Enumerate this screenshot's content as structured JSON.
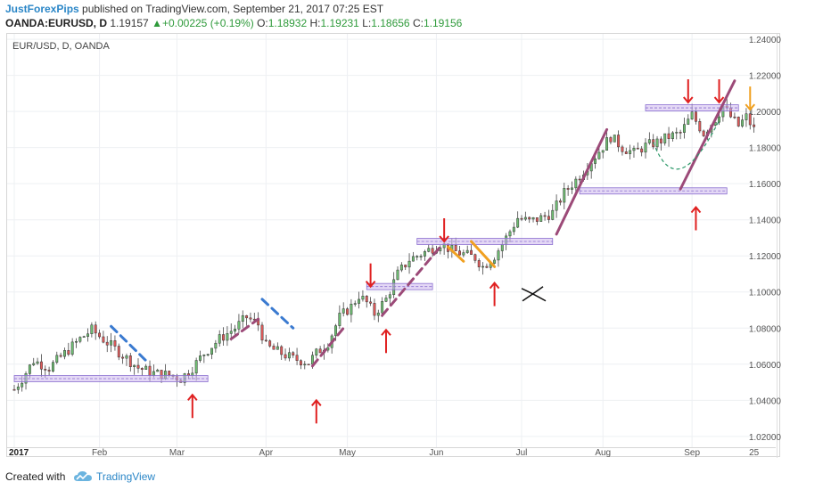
{
  "header": {
    "author": "JustForexPips",
    "published": " published on TradingView.com, September 21, 2017 07:25 EST",
    "symbol": "OANDA:EURUSD, D",
    "last": "1.19157",
    "change": "+0.00225 (+0.19%)",
    "o_label": "O:",
    "o": "1.18932",
    "h_label": "H:",
    "h": "1.19231",
    "l_label": "L:",
    "l": "1.18656",
    "c_label": "C:",
    "c": "1.19156"
  },
  "footer": {
    "created_with": "Created with",
    "brand": "TradingView"
  },
  "chart_data": {
    "type": "candlestick",
    "title": "EUR/USD, D, OANDA",
    "ylim": [
      1.014,
      1.243
    ],
    "xlim": [
      0,
      195
    ],
    "y_ticks": [
      "1.24000",
      "1.22000",
      "1.20000",
      "1.18000",
      "1.16000",
      "1.14000",
      "1.12000",
      "1.10000",
      "1.08000",
      "1.06000",
      "1.04000",
      "1.02000"
    ],
    "x_ticks": [
      {
        "label": "2017",
        "t": 0
      },
      {
        "label": "Feb",
        "t": 22
      },
      {
        "label": "Mar",
        "t": 42
      },
      {
        "label": "Apr",
        "t": 65
      },
      {
        "label": "May",
        "t": 86
      },
      {
        "label": "Jun",
        "t": 109
      },
      {
        "label": "Jul",
        "t": 131
      },
      {
        "label": "Aug",
        "t": 152
      },
      {
        "label": "Sep",
        "t": 175
      },
      {
        "label": "25",
        "t": 191
      }
    ],
    "path_points": [
      [
        0,
        1.046
      ],
      [
        2,
        1.052
      ],
      [
        5,
        1.062
      ],
      [
        9,
        1.058
      ],
      [
        13,
        1.066
      ],
      [
        17,
        1.074
      ],
      [
        20,
        1.079
      ],
      [
        24,
        1.072
      ],
      [
        28,
        1.065
      ],
      [
        32,
        1.058
      ],
      [
        36,
        1.055
      ],
      [
        40,
        1.054
      ],
      [
        43,
        1.052
      ],
      [
        46,
        1.058
      ],
      [
        49,
        1.066
      ],
      [
        53,
        1.074
      ],
      [
        57,
        1.08
      ],
      [
        60,
        1.086
      ],
      [
        63,
        1.082
      ],
      [
        65,
        1.07
      ],
      [
        69,
        1.066
      ],
      [
        72,
        1.063
      ],
      [
        76,
        1.061
      ],
      [
        78,
        1.066
      ],
      [
        81,
        1.072
      ],
      [
        84,
        1.086
      ],
      [
        87,
        1.092
      ],
      [
        89,
        1.098
      ],
      [
        91,
        1.094
      ],
      [
        93,
        1.088
      ],
      [
        96,
        1.096
      ],
      [
        99,
        1.11
      ],
      [
        102,
        1.118
      ],
      [
        106,
        1.122
      ],
      [
        110,
        1.127
      ],
      [
        113,
        1.123
      ],
      [
        116,
        1.121
      ],
      [
        119,
        1.119
      ],
      [
        121,
        1.114
      ],
      [
        124,
        1.12
      ],
      [
        127,
        1.13
      ],
      [
        130,
        1.141
      ],
      [
        133,
        1.139
      ],
      [
        136,
        1.141
      ],
      [
        139,
        1.144
      ],
      [
        142,
        1.155
      ],
      [
        145,
        1.162
      ],
      [
        148,
        1.17
      ],
      [
        151,
        1.178
      ],
      [
        154,
        1.186
      ],
      [
        157,
        1.18
      ],
      [
        160,
        1.177
      ],
      [
        163,
        1.181
      ],
      [
        166,
        1.183
      ],
      [
        169,
        1.186
      ],
      [
        172,
        1.188
      ],
      [
        175,
        1.198
      ],
      [
        178,
        1.188
      ],
      [
        181,
        1.196
      ],
      [
        183,
        1.203
      ],
      [
        185,
        1.197
      ],
      [
        187,
        1.192
      ],
      [
        189,
        1.197
      ],
      [
        191,
        1.19
      ]
    ],
    "annotations": {
      "support_resistance_zones": [
        {
          "t0": 0,
          "t1": 50,
          "y": 1.052
        },
        {
          "t0": 91,
          "t1": 108,
          "y": 1.103
        },
        {
          "t0": 104,
          "t1": 139,
          "y": 1.128
        },
        {
          "t0": 146,
          "t1": 184,
          "y": 1.156
        },
        {
          "t0": 163,
          "t1": 187,
          "y": 1.202
        }
      ],
      "trendlines": [
        {
          "style": "dashed",
          "color": "#9c4a78",
          "points": [
            [
              56,
              1.074
            ],
            [
              63,
              1.085
            ]
          ]
        },
        {
          "style": "dashed",
          "color": "#9c4a78",
          "points": [
            [
              77,
              1.059
            ],
            [
              85,
              1.08
            ]
          ]
        },
        {
          "style": "dashed",
          "color": "#9c4a78",
          "points": [
            [
              95,
              1.087
            ],
            [
              110,
              1.125
            ]
          ]
        },
        {
          "style": "solid",
          "color": "#9c4a78",
          "points": [
            [
              140,
              1.132
            ],
            [
              153,
              1.19
            ]
          ]
        },
        {
          "style": "solid",
          "color": "#9c4a78",
          "points": [
            [
              172,
              1.157
            ],
            [
              186,
              1.217
            ]
          ]
        },
        {
          "style": "dashed",
          "color": "#3a7ad0",
          "points": [
            [
              25,
              1.081
            ],
            [
              34,
              1.062
            ]
          ]
        },
        {
          "style": "dashed",
          "color": "#3a7ad0",
          "points": [
            [
              64,
              1.096
            ],
            [
              72,
              1.08
            ]
          ]
        },
        {
          "style": "solid",
          "color": "#f0a020",
          "points": [
            [
              112,
              1.125
            ],
            [
              116,
              1.117
            ]
          ]
        },
        {
          "style": "solid",
          "color": "#f0a020",
          "points": [
            [
              118,
              1.128
            ],
            [
              124,
              1.114
            ]
          ]
        }
      ],
      "arrows": [
        {
          "dir": "up",
          "color": "#e02020",
          "t": 46,
          "y": 1.043
        },
        {
          "dir": "up",
          "color": "#e02020",
          "t": 78,
          "y": 1.04
        },
        {
          "dir": "down",
          "color": "#e02020",
          "t": 92,
          "y": 1.103
        },
        {
          "dir": "up",
          "color": "#e02020",
          "t": 96,
          "y": 1.079
        },
        {
          "dir": "down",
          "color": "#e02020",
          "t": 111,
          "y": 1.128
        },
        {
          "dir": "up",
          "color": "#e02020",
          "t": 124,
          "y": 1.105
        },
        {
          "dir": "up",
          "color": "#e02020",
          "t": 176,
          "y": 1.147
        },
        {
          "dir": "down",
          "color": "#e02020",
          "t": 174,
          "y": 1.205
        },
        {
          "dir": "down",
          "color": "#e02020",
          "t": 182,
          "y": 1.205
        },
        {
          "dir": "down",
          "color": "#f0a020",
          "t": 190,
          "y": 1.201
        }
      ],
      "cross_marker": {
        "t": 134,
        "y": 1.099
      }
    }
  }
}
